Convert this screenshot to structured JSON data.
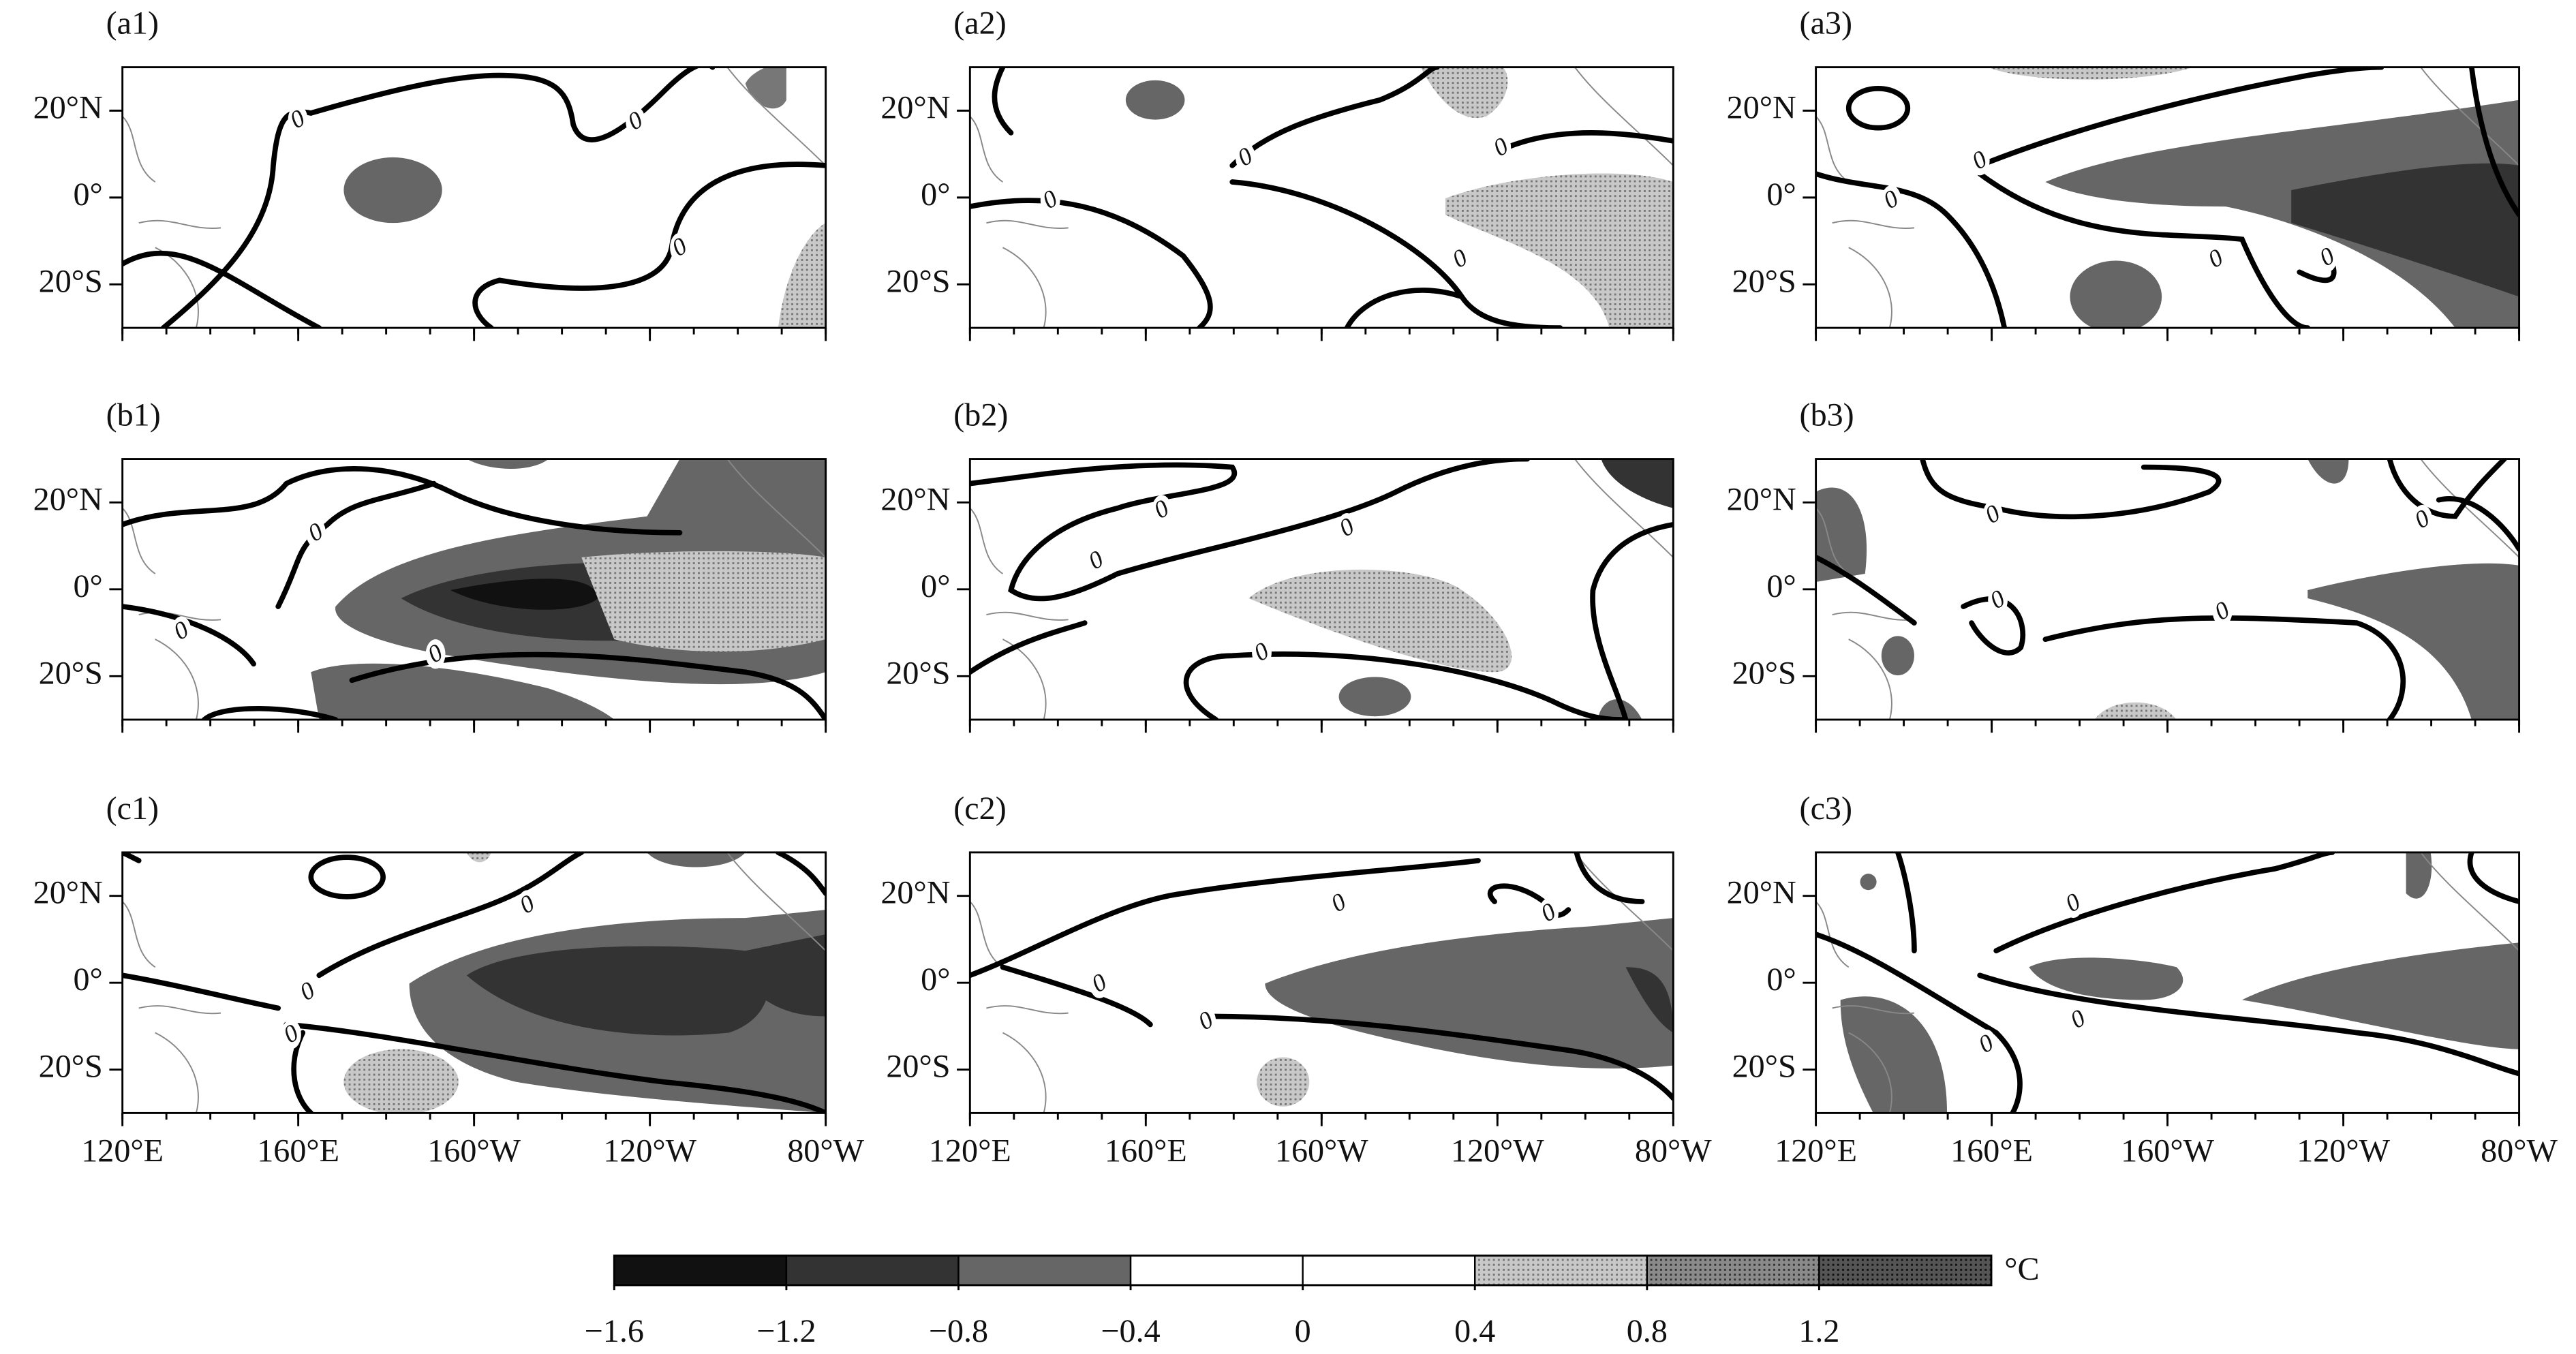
{
  "panels": [
    {
      "label": "(a1)",
      "contour_labels": [
        "0",
        "0",
        "0"
      ]
    },
    {
      "label": "(a2)",
      "contour_labels": [
        "0",
        "0",
        "0",
        "0"
      ]
    },
    {
      "label": "(a3)",
      "contour_labels": [
        "0",
        "0",
        "0",
        "0"
      ]
    },
    {
      "label": "(b1)",
      "contour_labels": [
        "0",
        "0",
        "0"
      ]
    },
    {
      "label": "(b2)",
      "contour_labels": [
        "0",
        "0",
        "0",
        "0"
      ]
    },
    {
      "label": "(b3)",
      "contour_labels": [
        "0",
        "0",
        "0",
        "0"
      ]
    },
    {
      "label": "(c1)",
      "contour_labels": [
        "0",
        "0",
        "0"
      ]
    },
    {
      "label": "(c2)",
      "contour_labels": [
        "0",
        "0",
        "0",
        "0"
      ]
    },
    {
      "label": "(c3)",
      "contour_labels": [
        "0",
        "0",
        "0"
      ]
    }
  ],
  "map": {
    "xlim": [
      120,
      280
    ],
    "ylim": [
      -30,
      30
    ],
    "xticks": [
      {
        "value": 120,
        "label": "120°E"
      },
      {
        "value": 160,
        "label": "160°E"
      },
      {
        "value": 200,
        "label": "160°W"
      },
      {
        "value": 240,
        "label": "120°W"
      },
      {
        "value": 280,
        "label": "80°W"
      }
    ],
    "yticks": [
      {
        "value": 20,
        "label": "20°N"
      },
      {
        "value": 0,
        "label": "0°"
      },
      {
        "value": -20,
        "label": "20°S"
      }
    ]
  },
  "colorbar": {
    "unit": "°C",
    "range": [
      -1.6,
      1.6
    ],
    "levels": [
      -1.6,
      -1.2,
      -0.8,
      -0.4,
      0,
      0.4,
      0.8,
      1.2,
      1.6
    ],
    "colors": [
      "#111111",
      "#333333",
      "#666666",
      "#ffffff",
      "#ffffff",
      "url(#dots1)",
      "url(#dots2)",
      "url(#dots3)"
    ],
    "ticks": [
      {
        "value": -1.6,
        "label": "−1.6"
      },
      {
        "value": -1.2,
        "label": "−1.2"
      },
      {
        "value": -0.8,
        "label": "−0.8"
      },
      {
        "value": -0.4,
        "label": "−0.4"
      },
      0,
      0.4,
      0.8,
      1.2
    ]
  }
}
